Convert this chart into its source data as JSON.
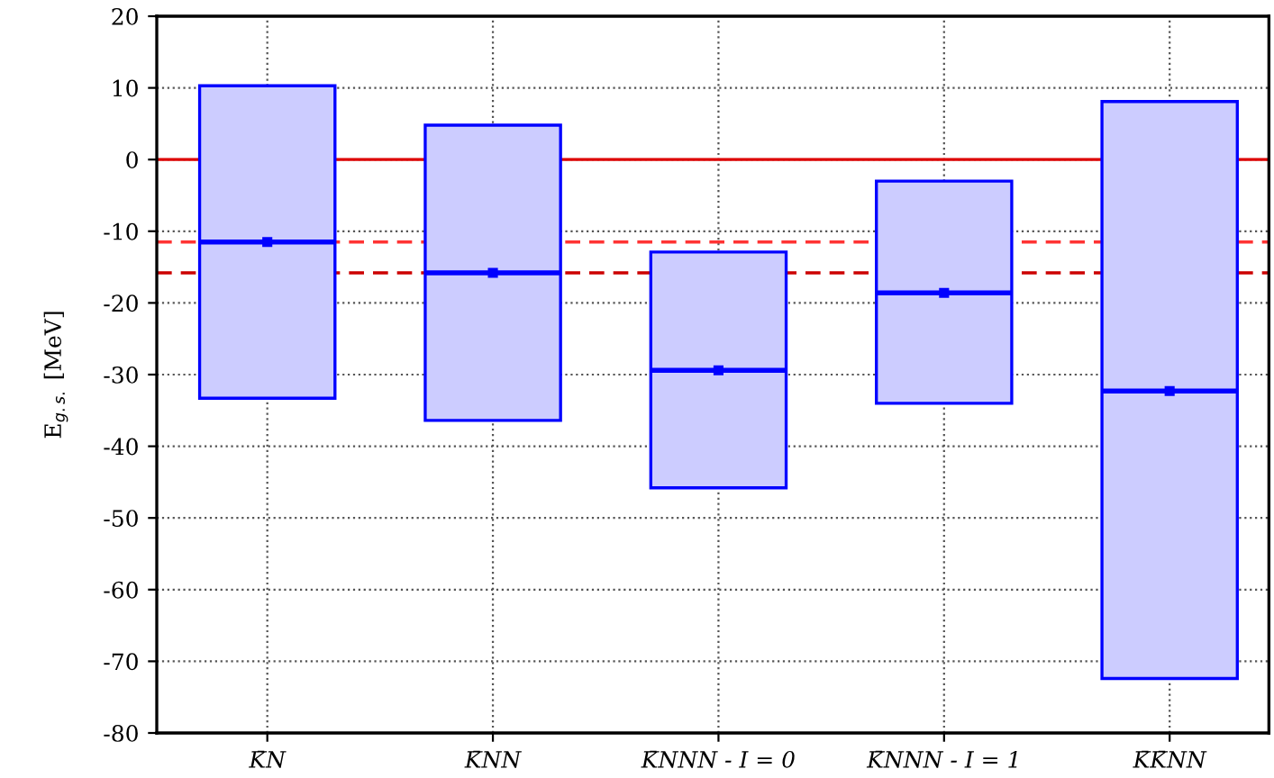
{
  "chart_data": {
    "type": "box",
    "ylabel": "E$_{g.s.}$ [MeV]",
    "categories": [
      "K̄N",
      "K̄NN",
      "K̄NNN - I = 0",
      "K̄NNN - I = 1",
      "K̄K̄NN"
    ],
    "boxes": [
      {
        "q1": -33.3,
        "median": -11.5,
        "q3": 10.3,
        "mean": -11.5
      },
      {
        "q1": -36.4,
        "median": -15.8,
        "q3": 4.8,
        "mean": -15.8
      },
      {
        "q1": -45.8,
        "median": -29.4,
        "q3": -12.9,
        "mean": -29.4
      },
      {
        "q1": -34.0,
        "median": -18.6,
        "q3": -3.0,
        "mean": -18.6
      },
      {
        "q1": -72.4,
        "median": -32.3,
        "q3": 8.1,
        "mean": -32.3
      }
    ],
    "color": "#0000ff",
    "ylim": [
      -80,
      20
    ],
    "yticks": [
      -80,
      -70,
      -60,
      -50,
      -40,
      -30,
      -20,
      -10,
      0,
      10,
      20
    ],
    "ref_lines": [
      {
        "axis": "y",
        "value": 0,
        "color": "#dd0000",
        "line_style": "solid"
      },
      {
        "axis": "y",
        "value": -11.5,
        "color": "#ff3333",
        "line_style": "dashed"
      },
      {
        "axis": "y",
        "value": -15.8,
        "color": "#cc0000",
        "line_style": "dashed"
      }
    ],
    "grid": true
  }
}
